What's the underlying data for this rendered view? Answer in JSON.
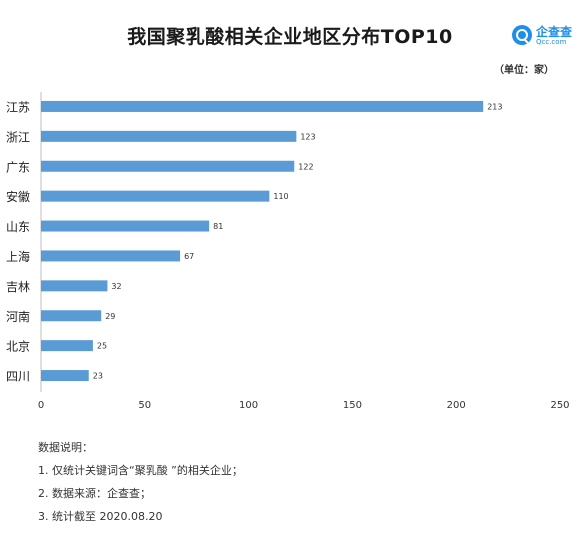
{
  "logo": {
    "name": "企查查",
    "sub": "Qcc.com"
  },
  "unit": "（单位：家）",
  "chart_data": {
    "type": "bar",
    "orientation": "horizontal",
    "title": "我国聚乳酸相关企业地区分布TOP10",
    "categories": [
      "江苏",
      "浙江",
      "广东",
      "安徽",
      "山东",
      "上海",
      "吉林",
      "河南",
      "北京",
      "四川"
    ],
    "values": [
      213,
      123,
      122,
      110,
      81,
      67,
      32,
      29,
      25,
      23
    ],
    "xlim": [
      0,
      250
    ],
    "xticks": [
      0,
      50,
      100,
      150,
      200,
      250
    ],
    "xlabel": "",
    "ylabel": "",
    "color": "#5b9bd5",
    "grid": false
  },
  "notes": {
    "heading": "数据说明：",
    "items": [
      "1. 仅统计关键词含“聚乳酸 ”的相关企业；",
      "2. 数据来源：企查查；",
      "3. 统计截至 2020.08.20"
    ]
  }
}
